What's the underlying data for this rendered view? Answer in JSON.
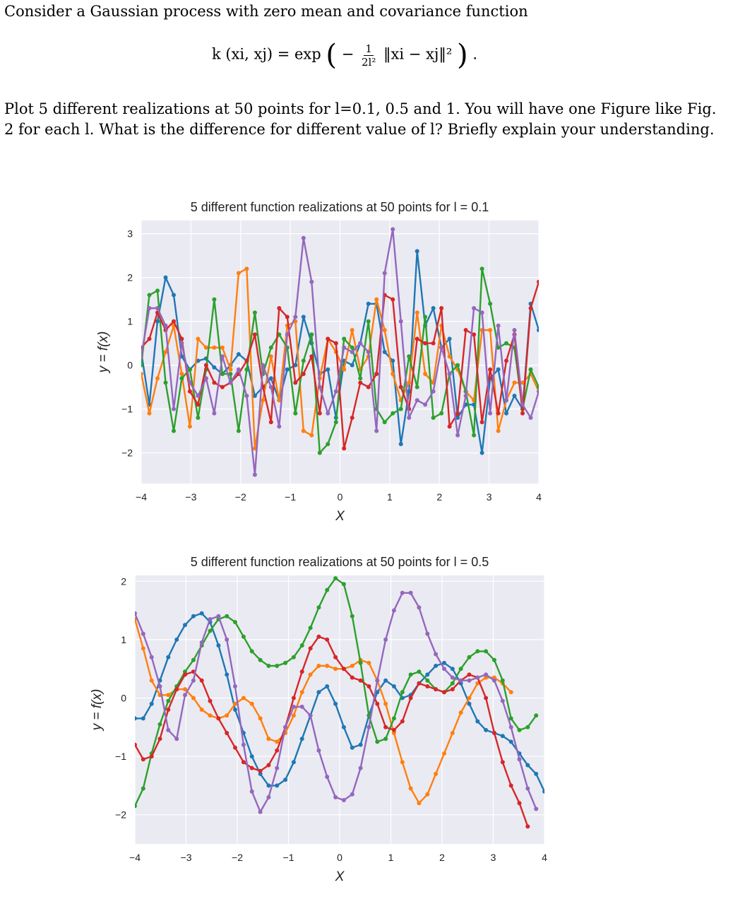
{
  "problem": {
    "intro": "Consider a Gaussian process with zero mean and covariance function",
    "formula_lhs": "k (xi, xj) = exp",
    "formula_frac_num": "1",
    "formula_frac_den": "2l²",
    "formula_norm": "‖xi − xj‖²",
    "formula_end": ".",
    "question_line1": "Plot 5 different realizations at 50 points for l=0.1, 0.5 and 1. You will have one Figure like Fig.",
    "question_line2": "2 for each l. What is the difference for different value of l? Briefly explain your understanding."
  },
  "chart_data": [
    {
      "type": "line",
      "title": "5 different function realizations at 50 points for l = 0.1",
      "xlabel": "X",
      "ylabel": "y = f(x)",
      "xlim": [
        -4,
        4
      ],
      "ylim": [
        -2.7,
        3.3
      ],
      "xticks": [
        "−4",
        "−3",
        "−2",
        "−1",
        "0",
        "1",
        "2",
        "3",
        "4"
      ],
      "yticks": [
        "−2",
        "−1",
        "0",
        "1",
        "2",
        "3"
      ],
      "xtick_values": [
        -4,
        -3,
        -2,
        -1,
        0,
        1,
        2,
        3,
        4
      ],
      "ytick_values": [
        -2,
        -1,
        0,
        1,
        2,
        3
      ],
      "grid": true,
      "colors": [
        "#1f77b4",
        "#ff7f0e",
        "#2ca02c",
        "#d62728",
        "#9467bd"
      ],
      "series": [
        {
          "values": [
            0.3,
            -0.9,
            1.0,
            2.0,
            1.6,
            0.2,
            -0.1,
            0.1,
            0.15,
            -0.05,
            -0.2,
            0.0,
            0.25,
            0.1,
            -0.7,
            -0.5,
            -0.3,
            -0.8,
            -0.1,
            0.0,
            1.1,
            0.5,
            -0.2,
            -0.1,
            -1.2,
            0.1,
            0.0,
            0.5,
            1.4,
            1.4,
            0.3,
            0.1,
            -1.8,
            -0.6,
            2.6,
            0.9,
            1.3,
            0.4,
            0.6,
            -1.2,
            -0.9,
            -0.9,
            -2.0,
            -0.3,
            -0.1,
            -1.1,
            -0.7,
            -1.0,
            1.4,
            0.8
          ]
        },
        {
          "values": [
            -0.2,
            -1.1,
            -0.3,
            0.3,
            0.9,
            -0.2,
            -1.4,
            0.6,
            0.4,
            0.4,
            0.4,
            -0.1,
            2.1,
            2.2,
            -1.9,
            -0.8,
            0.2,
            -0.8,
            0.9,
            1.0,
            -1.5,
            -1.6,
            -0.3,
            0.6,
            0.3,
            -0.1,
            0.8,
            -0.1,
            0.2,
            1.5,
            0.8,
            -0.2,
            -0.8,
            -0.4,
            1.2,
            -0.2,
            -0.4,
            0.9,
            0.2,
            -0.1,
            -0.6,
            -0.8,
            0.8,
            0.8,
            -1.5,
            -0.8,
            -0.4,
            -0.4,
            -0.2,
            -0.6
          ]
        },
        {
          "values": [
            0.0,
            1.6,
            1.7,
            -0.4,
            -1.5,
            -0.3,
            -0.1,
            -1.2,
            -0.1,
            1.5,
            -0.2,
            -0.2,
            -1.5,
            -0.1,
            1.2,
            -0.2,
            0.4,
            0.7,
            0.4,
            -1.1,
            0.1,
            0.7,
            -2.0,
            -1.8,
            -1.3,
            0.6,
            0.4,
            -0.3,
            1.0,
            -1.0,
            -1.3,
            -1.1,
            -1.0,
            0.2,
            -0.5,
            1.1,
            -1.2,
            -1.1,
            -0.2,
            0.0,
            -0.6,
            -1.6,
            2.2,
            1.4,
            0.4,
            0.5,
            0.4,
            -1.0,
            -0.1,
            -0.5
          ]
        },
        {
          "values": [
            0.4,
            0.6,
            1.2,
            0.8,
            1.0,
            0.6,
            -0.6,
            -0.9,
            0.0,
            -0.4,
            -0.5,
            -0.4,
            -0.2,
            0.1,
            0.7,
            -0.5,
            -1.3,
            1.3,
            1.1,
            -0.4,
            -0.2,
            0.2,
            -1.1,
            0.6,
            0.5,
            -1.9,
            -1.2,
            -0.4,
            -0.5,
            -0.2,
            1.6,
            1.5,
            -0.5,
            -1.0,
            0.6,
            0.5,
            0.5,
            1.3,
            -1.4,
            -1.1,
            0.8,
            0.7,
            -1.3,
            -0.1,
            -1.1,
            0.1,
            0.7,
            -1.1,
            1.3,
            1.9
          ]
        },
        {
          "values": [
            0.2,
            1.3,
            1.3,
            0.9,
            -1.0,
            0.5,
            -0.4,
            -0.7,
            -0.3,
            -1.1,
            0.2,
            -0.4,
            -0.1,
            -0.7,
            -2.5,
            0.0,
            -0.5,
            -1.4,
            0.7,
            1.1,
            2.9,
            1.9,
            -0.5,
            -1.1,
            -0.6,
            0.4,
            0.3,
            0.5,
            0.3,
            -1.5,
            2.1,
            3.1,
            1.0,
            -1.2,
            -0.8,
            -0.9,
            -0.6,
            0.4,
            -0.2,
            -1.6,
            -0.7,
            1.3,
            1.2,
            -1.1,
            0.9,
            -0.8,
            0.8,
            -0.9,
            -1.2,
            -0.6
          ]
        }
      ]
    },
    {
      "type": "line",
      "title": "5 different function realizations at 50 points for l = 0.5",
      "xlabel": "X",
      "ylabel": "y = f(x)",
      "xlim": [
        -4,
        4
      ],
      "ylim": [
        -2.5,
        2.1
      ],
      "xticks": [
        "−4",
        "−3",
        "−2",
        "−1",
        "0",
        "1",
        "2",
        "3",
        "4"
      ],
      "yticks": [
        "−2",
        "−1",
        "0",
        "1",
        "2"
      ],
      "xtick_values": [
        -4,
        -3,
        -2,
        -1,
        0,
        1,
        2,
        3,
        4
      ],
      "ytick_values": [
        -2,
        -1,
        0,
        1,
        2
      ],
      "grid": true,
      "colors": [
        "#1f77b4",
        "#ff7f0e",
        "#2ca02c",
        "#d62728",
        "#9467bd"
      ],
      "series": [
        {
          "values": [
            -0.35,
            -0.35,
            -0.1,
            0.3,
            0.7,
            1.0,
            1.25,
            1.4,
            1.45,
            1.3,
            0.9,
            0.4,
            -0.2,
            -0.6,
            -1.0,
            -1.3,
            -1.5,
            -1.5,
            -1.4,
            -1.1,
            -0.7,
            -0.3,
            0.1,
            0.2,
            -0.1,
            -0.5,
            -0.85,
            -0.8,
            -0.3,
            0.1,
            0.3,
            0.2,
            0.0,
            0.05,
            0.25,
            0.4,
            0.55,
            0.6,
            0.5,
            0.25,
            -0.1,
            -0.4,
            -0.55,
            -0.6,
            -0.65,
            -0.75,
            -0.95,
            -1.15,
            -1.3,
            -1.6
          ]
        },
        {
          "values": [
            1.35,
            0.85,
            0.3,
            0.05,
            0.05,
            0.15,
            0.15,
            0.0,
            -0.2,
            -0.3,
            -0.35,
            -0.3,
            -0.1,
            0.0,
            -0.1,
            -0.35,
            -0.7,
            -0.75,
            -0.6,
            -0.3,
            0.1,
            0.4,
            0.55,
            0.55,
            0.5,
            0.5,
            0.55,
            0.65,
            0.6,
            0.3,
            -0.1,
            -0.6,
            -1.1,
            -1.55,
            -1.8,
            -1.65,
            -1.3,
            -0.95,
            -0.6,
            -0.25,
            0.0,
            0.25,
            0.35,
            0.35,
            0.25,
            0.1
          ]
        },
        {
          "values": [
            -1.85,
            -1.55,
            -0.95,
            -0.45,
            -0.05,
            0.2,
            0.45,
            0.65,
            0.9,
            1.15,
            1.35,
            1.4,
            1.3,
            1.05,
            0.8,
            0.65,
            0.55,
            0.55,
            0.6,
            0.7,
            0.9,
            1.2,
            1.55,
            1.85,
            2.05,
            1.95,
            1.4,
            0.6,
            -0.3,
            -0.75,
            -0.7,
            -0.35,
            0.1,
            0.4,
            0.45,
            0.3,
            0.15,
            0.1,
            0.25,
            0.5,
            0.7,
            0.8,
            0.8,
            0.65,
            0.3,
            -0.35,
            -0.55,
            -0.5,
            -0.3
          ]
        },
        {
          "values": [
            -0.8,
            -1.05,
            -1.0,
            -0.7,
            -0.2,
            0.15,
            0.4,
            0.45,
            0.3,
            -0.05,
            -0.35,
            -0.6,
            -0.85,
            -1.1,
            -1.2,
            -1.25,
            -1.15,
            -0.9,
            -0.5,
            0.0,
            0.45,
            0.85,
            1.05,
            1.0,
            0.7,
            0.5,
            0.35,
            0.3,
            0.2,
            -0.1,
            -0.5,
            -0.55,
            -0.4,
            0.0,
            0.25,
            0.2,
            0.15,
            0.1,
            0.15,
            0.3,
            0.4,
            0.35,
            0.0,
            -0.6,
            -1.1,
            -1.5,
            -1.8,
            -2.2
          ]
        },
        {
          "values": [
            1.45,
            1.1,
            0.7,
            0.2,
            -0.55,
            -0.7,
            0.05,
            0.3,
            0.95,
            1.35,
            1.4,
            1.0,
            0.2,
            -0.8,
            -1.6,
            -1.95,
            -1.7,
            -1.2,
            -0.5,
            -0.15,
            -0.15,
            -0.3,
            -0.9,
            -1.35,
            -1.7,
            -1.75,
            -1.65,
            -1.2,
            -0.5,
            0.3,
            1.0,
            1.5,
            1.8,
            1.8,
            1.55,
            1.1,
            0.75,
            0.5,
            0.35,
            0.3,
            0.3,
            0.35,
            0.4,
            0.3,
            -0.05,
            -0.5,
            -1.05,
            -1.55,
            -1.9
          ]
        }
      ]
    }
  ]
}
